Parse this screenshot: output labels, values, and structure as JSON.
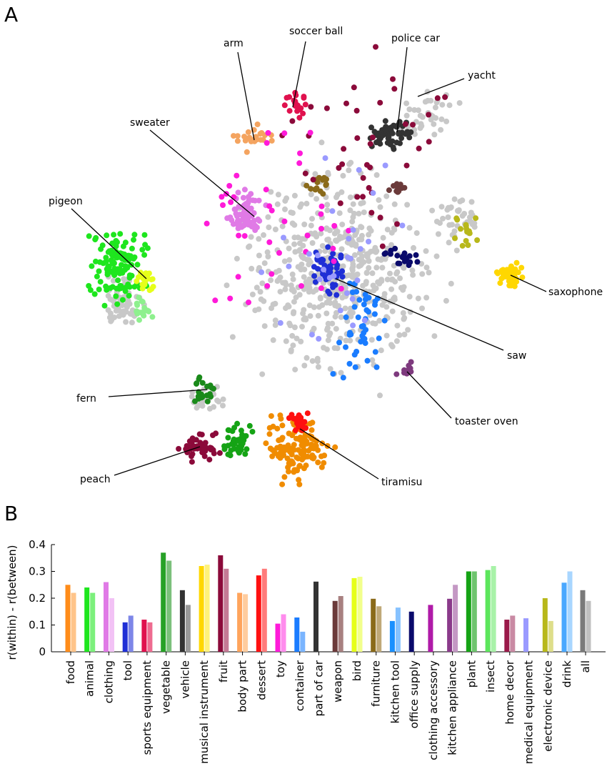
{
  "panel_a": {
    "letter": "A",
    "cluster_labels": [
      {
        "text": "arm",
        "color": "#f4a460"
      },
      {
        "text": "soccer ball",
        "color": "#e0114e"
      },
      {
        "text": "police car",
        "color": "#333333"
      },
      {
        "text": "yacht",
        "color": "#c8c8c8"
      },
      {
        "text": "sweater",
        "color": "#e07ae6"
      },
      {
        "text": "pigeon",
        "color": "#1ee61e"
      },
      {
        "text": "saxophone",
        "color": "#ffd700"
      },
      {
        "text": "saw",
        "color": "#1f2fd6"
      },
      {
        "text": "fern",
        "color": "#1a8a1a"
      },
      {
        "text": "toaster oven",
        "color": "#7e3a7e"
      },
      {
        "text": "peach",
        "color": "#8b0a3a"
      },
      {
        "text": "tiramisu",
        "color": "#f08c00"
      }
    ]
  },
  "panel_b": {
    "letter": "B"
  },
  "chart_data": {
    "type": "bar",
    "ylabel": "r(within) - r(between)",
    "ylim": [
      0,
      0.4
    ],
    "yticks": [
      "0",
      "0.1",
      "0.2",
      "0.3",
      "0.4"
    ],
    "series": [
      {
        "values": [
          0.25,
          0.24,
          0.26,
          0.11,
          0.12,
          0.37,
          0.23,
          0.32,
          0.36,
          0.22,
          0.285,
          0.105,
          0.128,
          0.262,
          0.19,
          0.275,
          0.198,
          0.115,
          0.15,
          0.175,
          0.198,
          0.3,
          0.305,
          0.12,
          0.125,
          0.2,
          0.258,
          0.23
        ]
      },
      {
        "values": [
          0.22,
          0.22,
          0.2,
          0.135,
          0.11,
          0.34,
          0.175,
          0.325,
          0.31,
          0.215,
          0.31,
          0.14,
          0.075,
          null,
          0.208,
          0.28,
          0.17,
          0.165,
          null,
          null,
          0.25,
          0.3,
          0.32,
          0.135,
          null,
          0.115,
          0.3,
          0.19
        ]
      }
    ],
    "categories": [
      {
        "label": "food",
        "colors": [
          "#ff8c1a",
          "#ffc48a"
        ]
      },
      {
        "label": "animal",
        "colors": [
          "#1ee61e",
          "#7cf07c"
        ]
      },
      {
        "label": "clothing",
        "colors": [
          "#e07ae6",
          "#f2c2f5"
        ]
      },
      {
        "label": "tool",
        "colors": [
          "#1f2fd6",
          "#7d86e8"
        ]
      },
      {
        "label": "sports equipment",
        "colors": [
          "#e0114e",
          "#ee6b90"
        ]
      },
      {
        "label": "vegetable",
        "colors": [
          "#27a127",
          "#7bc07b"
        ]
      },
      {
        "label": "vehicle",
        "colors": [
          "#333333",
          "#9a9a9a"
        ]
      },
      {
        "label": "musical instrument",
        "colors": [
          "#ffd700",
          "#fff27a"
        ]
      },
      {
        "label": "fruit",
        "colors": [
          "#8b0a3a",
          "#c47a95"
        ]
      },
      {
        "label": "body part",
        "colors": [
          "#ffa45c",
          "#ffcc9e"
        ]
      },
      {
        "label": "dessert",
        "colors": [
          "#ff1010",
          "#ff7a7a"
        ]
      },
      {
        "label": "toy",
        "colors": [
          "#ff1ad9",
          "#ff8ced"
        ]
      },
      {
        "label": "container",
        "colors": [
          "#1a7cff",
          "#7ab5ff"
        ]
      },
      {
        "label": "part of car",
        "colors": [
          "#333333",
          "#333333"
        ]
      },
      {
        "label": "weapon",
        "colors": [
          "#6b3a3a",
          "#a88080"
        ]
      },
      {
        "label": "bird",
        "colors": [
          "#e6ff1a",
          "#f2ff8c"
        ]
      },
      {
        "label": "furniture",
        "colors": [
          "#8a6a1a",
          "#bfa878"
        ]
      },
      {
        "label": "kitchen tool",
        "colors": [
          "#1a90ff",
          "#86c2ff"
        ]
      },
      {
        "label": "office supply",
        "colors": [
          "#0a0a6b",
          "#0a0a6b"
        ]
      },
      {
        "label": "clothing accessory",
        "colors": [
          "#b01aa8",
          "#b01aa8"
        ]
      },
      {
        "label": "kitchen appliance",
        "colors": [
          "#8a3a8a",
          "#c498c4"
        ]
      },
      {
        "label": "plant",
        "colors": [
          "#15a315",
          "#6ec46e"
        ]
      },
      {
        "label": "insect",
        "colors": [
          "#5ce65c",
          "#a8f2a8"
        ]
      },
      {
        "label": "home decor",
        "colors": [
          "#9a1a4a",
          "#c98aa3"
        ]
      },
      {
        "label": "medical equipment",
        "colors": [
          "#9a9aff",
          "#9a9aff"
        ]
      },
      {
        "label": "electronic device",
        "colors": [
          "#b8b81a",
          "#dede8a"
        ]
      },
      {
        "label": "drink",
        "colors": [
          "#4aa8ff",
          "#a8d6ff"
        ]
      },
      {
        "label": "all",
        "colors": [
          "#7a7a7a",
          "#c0c0c0"
        ]
      }
    ]
  }
}
